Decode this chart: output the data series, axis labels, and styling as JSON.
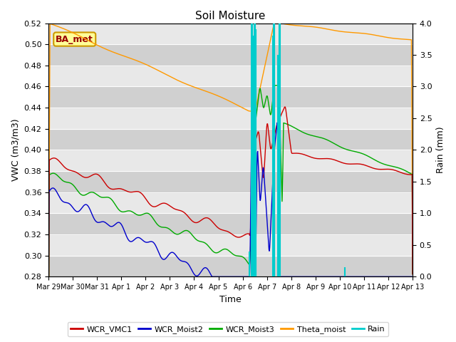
{
  "title": "Soil Moisture",
  "xlabel": "Time",
  "ylabel_left": "VWC (m3/m3)",
  "ylabel_right": "Rain (mm)",
  "ylim_left": [
    0.28,
    0.52
  ],
  "ylim_right": [
    0.0,
    4.0
  ],
  "yticks_left": [
    0.28,
    0.3,
    0.32,
    0.34,
    0.36,
    0.38,
    0.4,
    0.42,
    0.44,
    0.46,
    0.48,
    0.5,
    0.52
  ],
  "yticks_right": [
    0.0,
    0.5,
    1.0,
    1.5,
    2.0,
    2.5,
    3.0,
    3.5,
    4.0
  ],
  "xtick_labels": [
    "Mar 29",
    "Mar 30",
    "Mar 31",
    "Apr 1",
    "Apr 2",
    "Apr 3",
    "Apr 4",
    "Apr 5",
    "Apr 6",
    "Apr 7",
    "Apr 8",
    "Apr 9",
    "Apr 10",
    "Apr 11",
    "Apr 12",
    "Apr 13"
  ],
  "line_colors": {
    "WCR_VMC1": "#cc0000",
    "WCR_Moist2": "#0000cc",
    "WCR_Moist3": "#00aa00",
    "Theta_moist": "#ff9900",
    "Rain": "#00cccc"
  },
  "annotation_label": "BA_met",
  "annotation_color": "#990000",
  "annotation_bg": "#ffff99",
  "annotation_border": "#cc9900",
  "plot_bg": "#e8e8e8"
}
